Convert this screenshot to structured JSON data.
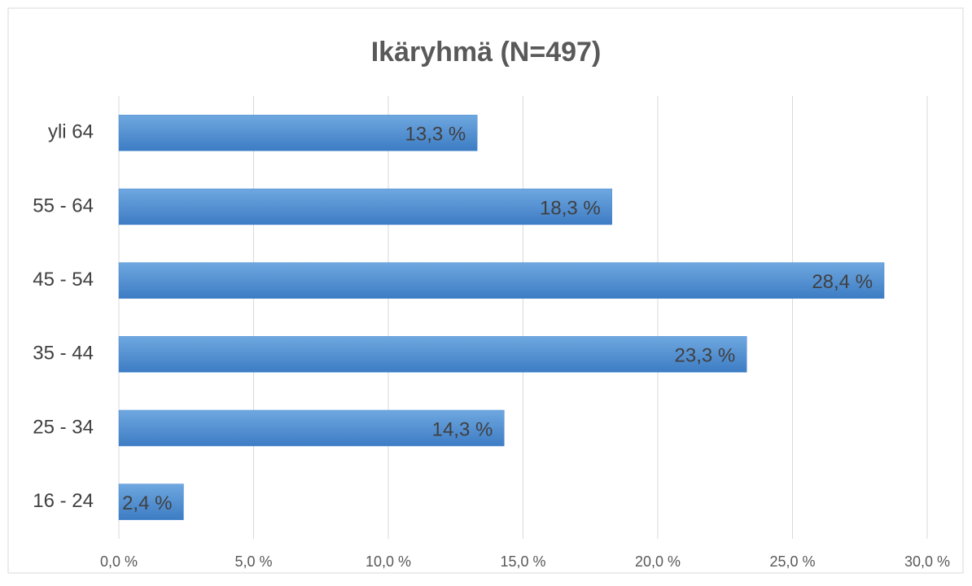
{
  "chart_data": {
    "type": "barh",
    "title": "Ikäryhmä (N=497)",
    "categories": [
      "yli 64",
      "55 - 64",
      "45 - 54",
      "35 - 44",
      "25 - 34",
      "16 - 24"
    ],
    "values": [
      13.3,
      18.3,
      28.4,
      23.3,
      14.3,
      2.4
    ],
    "value_labels": [
      "13,3 %",
      "18,3 %",
      "28,4 %",
      "23,3 %",
      "14,3 %",
      "2,4 %"
    ],
    "color": "#4a8ad0",
    "xlim": [
      0,
      30
    ],
    "xticks": [
      {
        "value": 0,
        "label": "0,0 %"
      },
      {
        "value": 5,
        "label": "5,0 %"
      },
      {
        "value": 10,
        "label": "10,0 %"
      },
      {
        "value": 15,
        "label": "15,0 %"
      },
      {
        "value": 20,
        "label": "20,0 %"
      },
      {
        "value": 25,
        "label": "25,0 %"
      },
      {
        "value": 30,
        "label": "30,0 %"
      }
    ],
    "grid": true
  }
}
